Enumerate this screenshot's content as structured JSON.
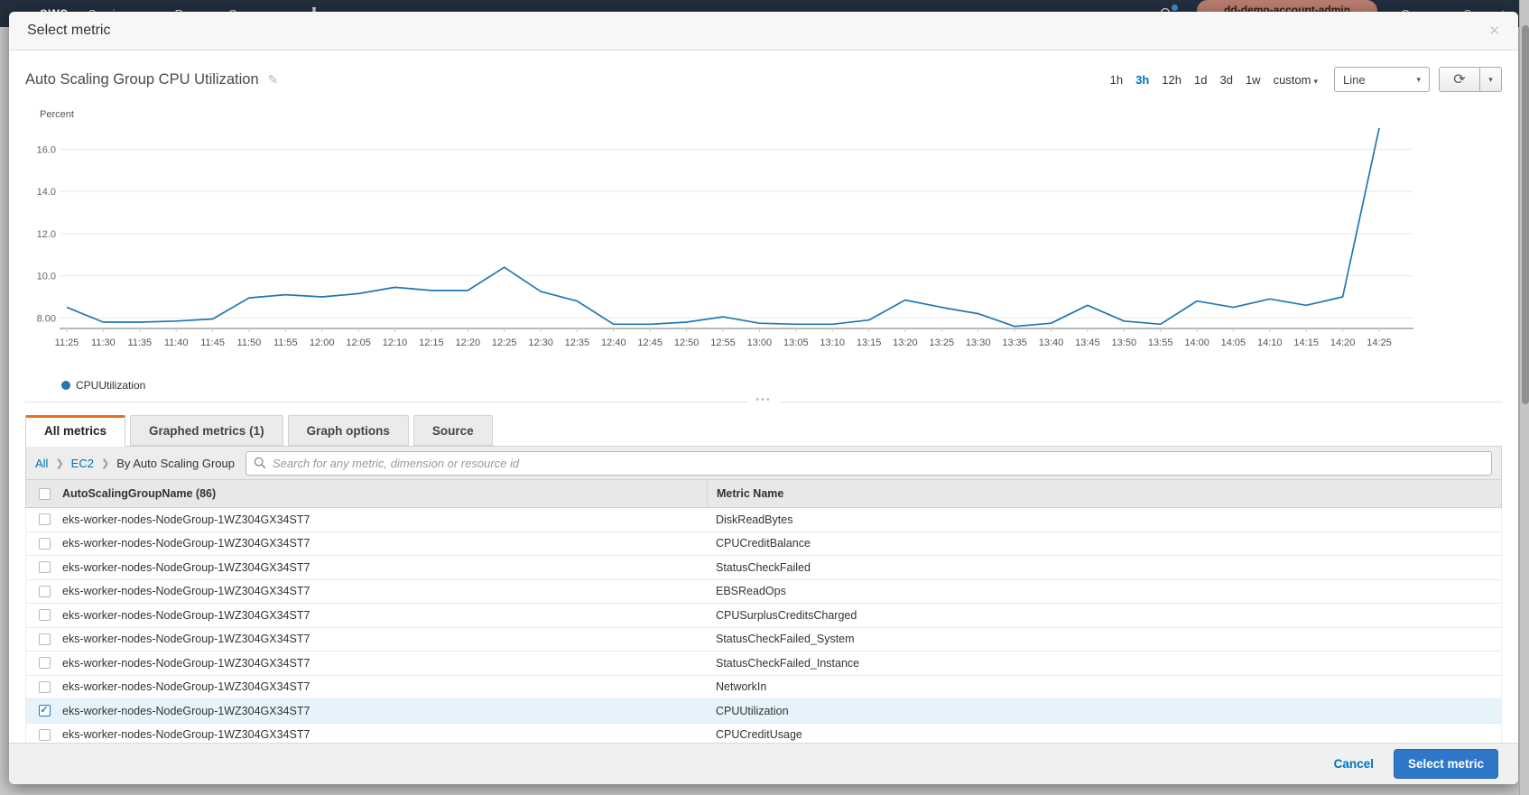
{
  "nav": {
    "logo": "aws",
    "items": [
      "Services",
      "Resource Groups"
    ],
    "right": {
      "account_button": "dd-demo-account-admin",
      "region": "Oregon",
      "support": "Support"
    }
  },
  "icons": {
    "close": "✕",
    "edit": "✎",
    "caret_down": "▾",
    "refresh": "⟳",
    "crumb_sep": "❯",
    "check": "✓",
    "drag_handle": "•••"
  },
  "modal": {
    "title": "Select metric",
    "chart_header": {
      "title": "Auto Scaling Group CPU Utilization"
    },
    "time_ranges": {
      "options": [
        "1h",
        "3h",
        "12h",
        "1d",
        "3d",
        "1w",
        "custom"
      ],
      "selected": "3h"
    },
    "chart_type": {
      "selected": "Line"
    },
    "tabs": [
      {
        "label": "All metrics",
        "active": true
      },
      {
        "label": "Graphed metrics (1)",
        "active": false
      },
      {
        "label": "Graph options",
        "active": false
      },
      {
        "label": "Source",
        "active": false
      }
    ],
    "breadcrumb": {
      "links": [
        "All",
        "EC2"
      ],
      "current": "By Auto Scaling Group"
    },
    "search": {
      "placeholder": "Search for any metric, dimension or resource id"
    },
    "table": {
      "columns": [
        "AutoScalingGroupName  (86)",
        "Metric Name"
      ],
      "rows": [
        {
          "name": "eks-worker-nodes-NodeGroup-1WZ304GX34ST7",
          "metric": "DiskReadBytes",
          "checked": false
        },
        {
          "name": "eks-worker-nodes-NodeGroup-1WZ304GX34ST7",
          "metric": "CPUCreditBalance",
          "checked": false
        },
        {
          "name": "eks-worker-nodes-NodeGroup-1WZ304GX34ST7",
          "metric": "StatusCheckFailed",
          "checked": false
        },
        {
          "name": "eks-worker-nodes-NodeGroup-1WZ304GX34ST7",
          "metric": "EBSReadOps",
          "checked": false
        },
        {
          "name": "eks-worker-nodes-NodeGroup-1WZ304GX34ST7",
          "metric": "CPUSurplusCreditsCharged",
          "checked": false
        },
        {
          "name": "eks-worker-nodes-NodeGroup-1WZ304GX34ST7",
          "metric": "StatusCheckFailed_System",
          "checked": false
        },
        {
          "name": "eks-worker-nodes-NodeGroup-1WZ304GX34ST7",
          "metric": "StatusCheckFailed_Instance",
          "checked": false
        },
        {
          "name": "eks-worker-nodes-NodeGroup-1WZ304GX34ST7",
          "metric": "NetworkIn",
          "checked": false
        },
        {
          "name": "eks-worker-nodes-NodeGroup-1WZ304GX34ST7",
          "metric": "CPUUtilization",
          "checked": true
        },
        {
          "name": "eks-worker-nodes-NodeGroup-1WZ304GX34ST7",
          "metric": "CPUCreditUsage",
          "checked": false
        }
      ]
    },
    "footer": {
      "cancel": "Cancel",
      "submit": "Select metric"
    }
  },
  "chart_data": {
    "type": "line",
    "title": "Auto Scaling Group CPU Utilization",
    "ylabel": "Percent",
    "grid": true,
    "legend_position": "bottom-left",
    "ylim": [
      7.5,
      17.6
    ],
    "yticks": [
      {
        "value": 8,
        "label": "8.00"
      },
      {
        "value": 10,
        "label": "10.0"
      },
      {
        "value": 12,
        "label": "12.0"
      },
      {
        "value": 14,
        "label": "14.0"
      },
      {
        "value": 16,
        "label": "16.0"
      }
    ],
    "x": [
      "11:25",
      "11:30",
      "11:35",
      "11:40",
      "11:45",
      "11:50",
      "11:55",
      "12:00",
      "12:05",
      "12:10",
      "12:15",
      "12:20",
      "12:25",
      "12:30",
      "12:35",
      "12:40",
      "12:45",
      "12:50",
      "12:55",
      "13:00",
      "13:05",
      "13:10",
      "13:15",
      "13:20",
      "13:25",
      "13:30",
      "13:35",
      "13:40",
      "13:45",
      "13:50",
      "13:55",
      "14:00",
      "14:05",
      "14:10",
      "14:15",
      "14:20",
      "14:25"
    ],
    "series": [
      {
        "name": "CPUUtilization",
        "color": "#1f77b4",
        "values": [
          8.5,
          7.8,
          7.8,
          7.85,
          7.95,
          8.95,
          9.1,
          9.0,
          9.15,
          9.45,
          9.3,
          9.3,
          10.4,
          9.25,
          8.8,
          7.7,
          7.7,
          7.8,
          8.05,
          7.75,
          7.7,
          7.7,
          7.9,
          8.85,
          8.5,
          8.2,
          7.6,
          7.75,
          8.6,
          7.85,
          7.7,
          8.8,
          8.5,
          8.9,
          8.6,
          9.0,
          17.0
        ]
      }
    ]
  },
  "colors": {
    "accent_orange": "#e8711c",
    "link_blue": "#0073bb",
    "button_blue": "#2e77c9",
    "line_blue": "#1f77b4",
    "selected_row": "#e7f3fb",
    "nav_bg": "#232f3e",
    "account_pill": "#b97d70"
  }
}
